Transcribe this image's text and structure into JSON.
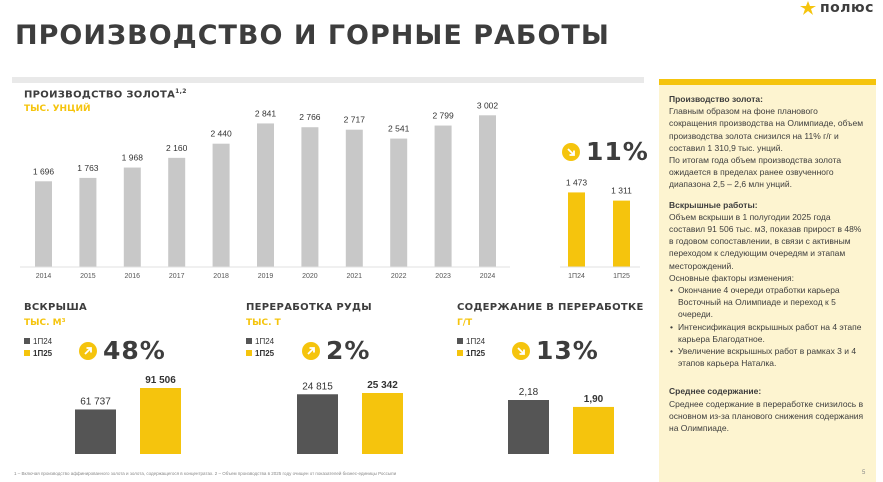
{
  "logo": {
    "text": "полюс"
  },
  "page_title": "ПРОИЗВОДСТВО И ГОРНЫЕ РАБОТЫ",
  "colors": {
    "yellow": "#f5c40d",
    "grey": "#c8c8c8",
    "dark": "#555555",
    "panel_bg": "#fdf4d0"
  },
  "gold": {
    "title": "ПРОИЗВОДСТВО ЗОЛОТА",
    "title_sup": "1,2",
    "unit": "ТЫС. УНЦИЙ",
    "change": "11%",
    "change_icon": "arrow-down-right-icon"
  },
  "stripping": {
    "title": "ВСКРЫША",
    "unit": "ТЫС. М³",
    "legend": [
      "1П24",
      "1П25"
    ],
    "change": "48%",
    "change_icon": "arrow-up-right-icon"
  },
  "ore": {
    "title": "ПЕРЕРАБОТКА РУДЫ",
    "unit": "ТЫС. Т",
    "legend": [
      "1П24",
      "1П25"
    ],
    "change": "2%",
    "change_icon": "arrow-up-right-icon"
  },
  "grade": {
    "title": "СОДЕРЖАНИЕ В ПЕРЕРАБОТКЕ",
    "unit": "Г/Т",
    "legend": [
      "1П24",
      "1П25"
    ],
    "change": "13%",
    "change_icon": "arrow-down-right-icon"
  },
  "chart_data": [
    {
      "type": "bar",
      "title": "ПРОИЗВОДСТВО ЗОЛОТА",
      "ylabel": "ТЫС. УНЦИЙ",
      "categories": [
        "2014",
        "2015",
        "2016",
        "2017",
        "2018",
        "2019",
        "2020",
        "2021",
        "2022",
        "2023",
        "2024"
      ],
      "values": [
        1696,
        1763,
        1968,
        2160,
        2440,
        2841,
        2766,
        2717,
        2541,
        2799,
        3002
      ],
      "labels": [
        "1 696",
        "1 763",
        "1 968",
        "2 160",
        "2 440",
        "2 841",
        "2 766",
        "2 717",
        "2 541",
        "2 799",
        "3 002"
      ],
      "color": "#c8c8c8",
      "ylim": [
        0,
        3100
      ],
      "grid": false
    },
    {
      "type": "bar",
      "title": "ПРОИЗВОДСТВО ЗОЛОТА",
      "ylabel": "ТЫС. УНЦИЙ",
      "categories": [
        "1П24",
        "1П25"
      ],
      "values": [
        1473,
        1311
      ],
      "labels": [
        "1 473",
        "1 311"
      ],
      "color": "#f5c40d",
      "ylim": [
        0,
        3100
      ],
      "grid": false
    },
    {
      "type": "bar",
      "title": "ВСКРЫША",
      "ylabel": "ТЫС. М³",
      "categories": [
        "1П24",
        "1П25"
      ],
      "values": [
        61737,
        91506
      ],
      "labels": [
        "61 737",
        "91 506"
      ],
      "colors": [
        "#555555",
        "#f5c40d"
      ],
      "ylim": [
        0,
        91506
      ],
      "grid": false
    },
    {
      "type": "bar",
      "title": "ПЕРЕРАБОТКА РУДЫ",
      "ylabel": "ТЫС. Т",
      "categories": [
        "1П24",
        "1П25"
      ],
      "values": [
        24815,
        25342
      ],
      "labels": [
        "24 815",
        "25 342"
      ],
      "colors": [
        "#555555",
        "#f5c40d"
      ],
      "ylim": [
        0,
        25342
      ],
      "grid": false
    },
    {
      "type": "bar",
      "title": "СОДЕРЖАНИЕ В ПЕРЕРАБОТКЕ",
      "ylabel": "Г/Т",
      "categories": [
        "1П24",
        "1П25"
      ],
      "values": [
        2.18,
        1.9
      ],
      "labels": [
        "2,18",
        "1,90"
      ],
      "colors": [
        "#555555",
        "#f5c40d"
      ],
      "ylim": [
        0,
        2.18
      ],
      "grid": false
    }
  ],
  "notes": {
    "gold_heading": "Производство золота:",
    "gold_p1": "Главным образом на фоне планового сокращения производства на Олимпиаде, объем производства золота снизился на 11% г/г и составил 1 310,9 тыс. унций.",
    "gold_p2": "По итогам года объем производства золота ожидается в пределах ранее озвученного диапазона 2,5 – 2,6 млн унций.",
    "stripping_heading": "Вскрышные работы:",
    "stripping_p1": "Объем вскрыши в 1 полугодии 2025 года составил 91 506 тыс. м3, показав прирост в 48% в годовом сопоставлении, в связи с активным переходом к следующим очередям и этапам месторождений.",
    "stripping_p2": "Основные факторы изменения:",
    "stripping_bullets": [
      "Окончание 4 очереди отработки карьера Восточный на Олимпиаде и переход к 5 очереди.",
      "Интенсификация вскрышных работ на 4 этапе карьера Благодатное.",
      "Увеличение вскрышных работ в рамках 3 и 4 этапов карьера Наталка."
    ],
    "grade_heading": "Среднее содержание:",
    "grade_p1": "Среднее содержание в переработке снизилось в основном из-за планового снижения содержания на Олимпиаде."
  },
  "footnote": "1 – Включая производство аффинированного золота и золота, содержащегося в концентратах. 2 – Объем производства в 2025 году очищен от показателей бизнес-единицы Россыпи",
  "page_number": "5"
}
